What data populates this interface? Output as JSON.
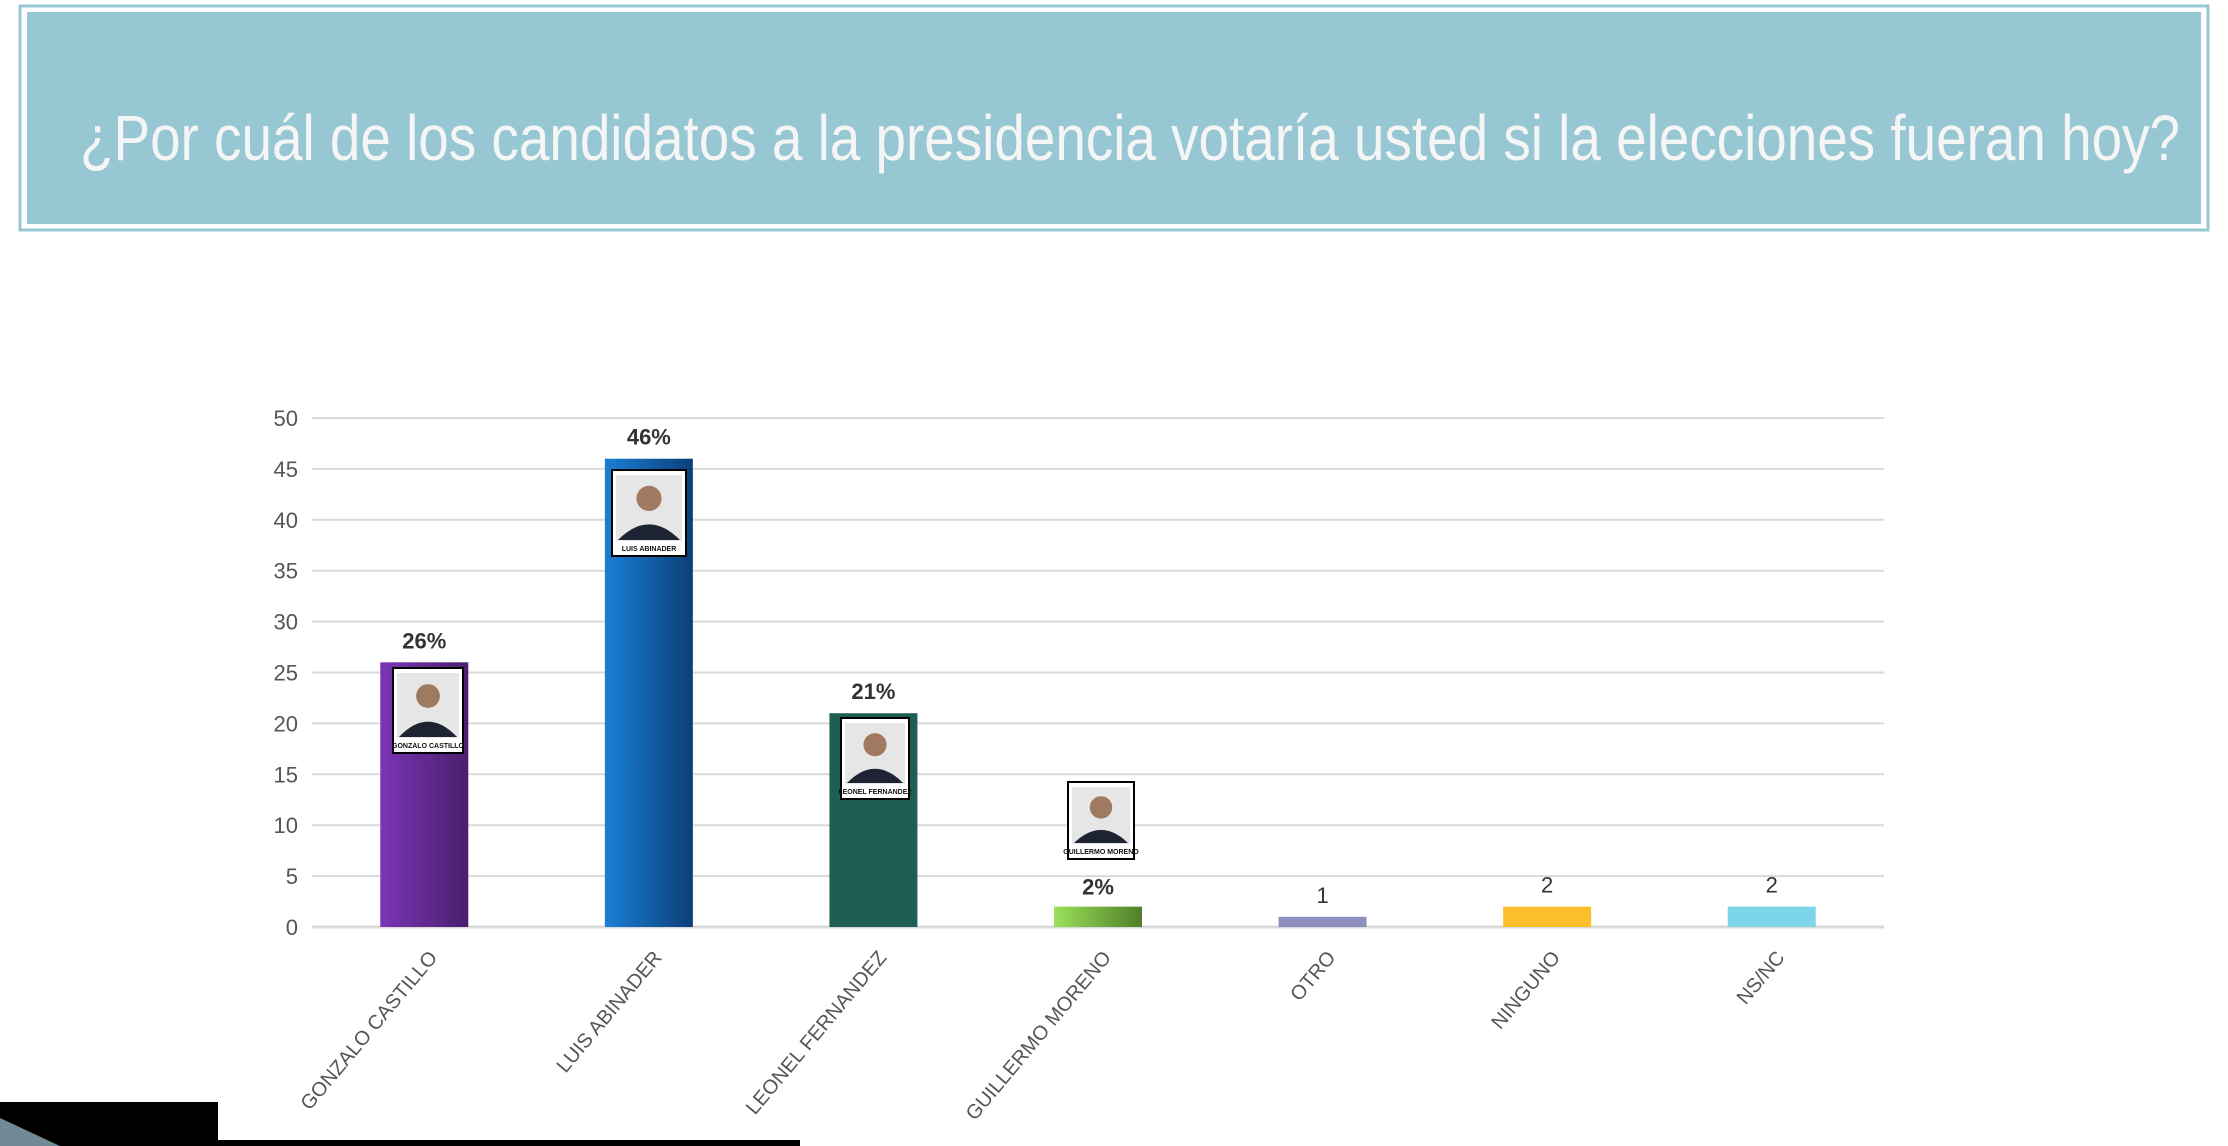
{
  "title": "¿Por cuál de los candidatos a la presidencia votaría usted si la elecciones fueran hoy?",
  "colors": {
    "banner": "#98c7d4",
    "banner_border": "#7fb5c4",
    "title_text": "#f5f5f5"
  },
  "chart_data": {
    "type": "bar",
    "title": "",
    "xlabel": "",
    "ylabel": "",
    "ylim": [
      0,
      50
    ],
    "yticks": [
      "0",
      "5",
      "10",
      "15",
      "20",
      "25",
      "30",
      "35",
      "40",
      "45",
      "50"
    ],
    "grid": true,
    "categories": [
      "GONZALO CASTILLO",
      "LUIS ABINADER",
      "LEONEL FERNANDEZ",
      "GUILLERMO MORENO",
      "OTRO",
      "NINGUNO",
      "NS/NC"
    ],
    "values": [
      26,
      46,
      21,
      2,
      1,
      2,
      2
    ],
    "data_labels": [
      "26%",
      "46%",
      "21%",
      "2%",
      "1",
      "2",
      "2"
    ],
    "bar_colors": [
      [
        "#7b35b5",
        "#4a1f6e"
      ],
      [
        "#1a7fd6",
        "#0c3f78"
      ],
      [
        "#1f5e52",
        "#1f5e52"
      ],
      [
        "#9be05a",
        "#4f7f2a"
      ],
      [
        "#8e8fbf",
        "#8e8fbf"
      ],
      [
        "#fbbf2c",
        "#fbbf2c"
      ],
      [
        "#7dd5ea",
        "#7dd5ea"
      ]
    ],
    "photo_captions": [
      "GONZALO CASTILLO",
      "LUIS ABINADER",
      "LEONEL FERNANDEZ",
      "GUILLERMO MORENO"
    ]
  }
}
